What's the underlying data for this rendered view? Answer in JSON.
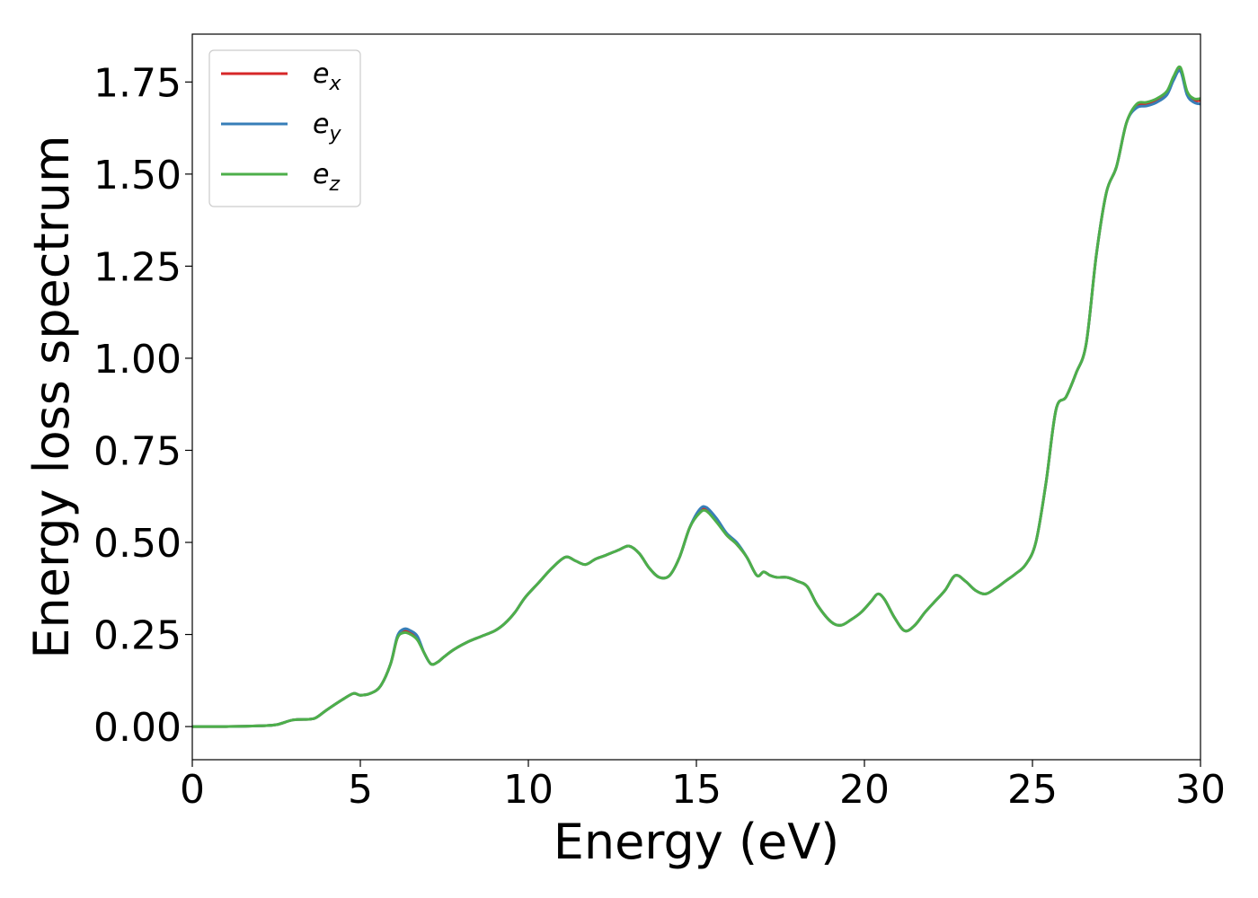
{
  "chart_data": {
    "type": "line",
    "title": "",
    "xlabel": "Energy (eV)",
    "ylabel": "Energy loss spectrum",
    "xlim": [
      0,
      30
    ],
    "ylim": [
      -0.09,
      1.88
    ],
    "xticks": [
      0,
      5,
      10,
      15,
      20,
      25,
      30
    ],
    "xtick_labels": [
      "0",
      "5",
      "10",
      "15",
      "20",
      "25",
      "30"
    ],
    "yticks": [
      0,
      0.25,
      0.5,
      0.75,
      1.0,
      1.25,
      1.5,
      1.75
    ],
    "ytick_labels": [
      "0.00",
      "0.25",
      "0.50",
      "0.75",
      "1.00",
      "1.25",
      "1.50",
      "1.75"
    ],
    "grid": false,
    "legend_position": "top-left",
    "x": [
      0,
      1,
      2,
      2.5,
      3,
      3.5,
      3.7,
      4,
      4.5,
      4.8,
      5,
      5.3,
      5.6,
      5.9,
      6.1,
      6.3,
      6.5,
      6.7,
      6.9,
      7.1,
      7.3,
      7.5,
      7.8,
      8.2,
      8.6,
      9,
      9.3,
      9.6,
      9.9,
      10.3,
      10.7,
      11.1,
      11.4,
      11.7,
      12,
      12.3,
      12.7,
      13,
      13.3,
      13.6,
      13.9,
      14.2,
      14.5,
      14.8,
      15.1,
      15.3,
      15.6,
      15.9,
      16.2,
      16.5,
      16.8,
      17,
      17.2,
      17.4,
      17.7,
      18,
      18.3,
      18.6,
      19,
      19.3,
      19.6,
      19.9,
      20.2,
      20.4,
      20.6,
      20.9,
      21.2,
      21.5,
      21.8,
      22.1,
      22.4,
      22.7,
      23,
      23.3,
      23.6,
      23.9,
      24.2,
      24.5,
      24.8,
      25.1,
      25.4,
      25.7,
      26,
      26.3,
      26.6,
      26.9,
      27.2,
      27.5,
      27.8,
      28.1,
      28.4,
      28.7,
      29,
      29.2,
      29.4,
      29.6,
      29.8,
      30
    ],
    "series": [
      {
        "name": "e_x",
        "label_base": "e",
        "label_sub": "x",
        "color": "#d62728",
        "y": [
          0.0,
          0.0,
          0.002,
          0.005,
          0.018,
          0.02,
          0.025,
          0.045,
          0.075,
          0.09,
          0.085,
          0.09,
          0.11,
          0.17,
          0.24,
          0.26,
          0.255,
          0.24,
          0.2,
          0.17,
          0.175,
          0.19,
          0.21,
          0.23,
          0.245,
          0.26,
          0.28,
          0.31,
          0.35,
          0.39,
          0.43,
          0.46,
          0.45,
          0.44,
          0.455,
          0.465,
          0.48,
          0.49,
          0.47,
          0.43,
          0.405,
          0.41,
          0.46,
          0.54,
          0.585,
          0.59,
          0.56,
          0.52,
          0.495,
          0.46,
          0.41,
          0.42,
          0.41,
          0.405,
          0.405,
          0.395,
          0.38,
          0.33,
          0.285,
          0.275,
          0.29,
          0.31,
          0.34,
          0.36,
          0.345,
          0.295,
          0.26,
          0.275,
          0.31,
          0.34,
          0.37,
          0.41,
          0.395,
          0.37,
          0.36,
          0.375,
          0.395,
          0.415,
          0.44,
          0.5,
          0.66,
          0.86,
          0.895,
          0.96,
          1.04,
          1.28,
          1.45,
          1.52,
          1.64,
          1.685,
          1.69,
          1.7,
          1.72,
          1.76,
          1.785,
          1.72,
          1.7,
          1.7
        ]
      },
      {
        "name": "e_y",
        "label_base": "e",
        "label_sub": "y",
        "color": "#377eb8",
        "y": [
          0.0,
          0.0,
          0.002,
          0.005,
          0.018,
          0.02,
          0.025,
          0.045,
          0.075,
          0.09,
          0.085,
          0.09,
          0.11,
          0.17,
          0.245,
          0.265,
          0.26,
          0.245,
          0.2,
          0.17,
          0.175,
          0.19,
          0.21,
          0.23,
          0.245,
          0.26,
          0.28,
          0.31,
          0.35,
          0.39,
          0.43,
          0.46,
          0.45,
          0.44,
          0.455,
          0.465,
          0.48,
          0.49,
          0.47,
          0.43,
          0.405,
          0.41,
          0.46,
          0.54,
          0.59,
          0.595,
          0.565,
          0.525,
          0.5,
          0.46,
          0.41,
          0.42,
          0.41,
          0.405,
          0.405,
          0.395,
          0.38,
          0.33,
          0.285,
          0.275,
          0.29,
          0.31,
          0.34,
          0.36,
          0.345,
          0.295,
          0.26,
          0.275,
          0.31,
          0.34,
          0.37,
          0.41,
          0.395,
          0.37,
          0.36,
          0.375,
          0.395,
          0.415,
          0.44,
          0.5,
          0.66,
          0.86,
          0.895,
          0.96,
          1.04,
          1.28,
          1.45,
          1.52,
          1.64,
          1.68,
          1.685,
          1.695,
          1.715,
          1.755,
          1.78,
          1.715,
          1.695,
          1.69
        ]
      },
      {
        "name": "e_z",
        "label_base": "e",
        "label_sub": "z",
        "color": "#4daf4a",
        "y": [
          0.0,
          0.0,
          0.002,
          0.005,
          0.018,
          0.02,
          0.025,
          0.045,
          0.075,
          0.09,
          0.085,
          0.09,
          0.11,
          0.17,
          0.24,
          0.255,
          0.25,
          0.235,
          0.2,
          0.17,
          0.175,
          0.19,
          0.21,
          0.23,
          0.245,
          0.26,
          0.28,
          0.31,
          0.35,
          0.39,
          0.43,
          0.46,
          0.45,
          0.44,
          0.455,
          0.465,
          0.48,
          0.49,
          0.47,
          0.43,
          0.405,
          0.41,
          0.46,
          0.54,
          0.58,
          0.585,
          0.555,
          0.52,
          0.495,
          0.46,
          0.41,
          0.42,
          0.41,
          0.405,
          0.405,
          0.395,
          0.38,
          0.33,
          0.285,
          0.275,
          0.29,
          0.31,
          0.34,
          0.36,
          0.345,
          0.295,
          0.26,
          0.275,
          0.31,
          0.34,
          0.37,
          0.41,
          0.395,
          0.37,
          0.36,
          0.375,
          0.395,
          0.415,
          0.44,
          0.5,
          0.66,
          0.86,
          0.895,
          0.96,
          1.04,
          1.28,
          1.45,
          1.52,
          1.64,
          1.69,
          1.695,
          1.705,
          1.725,
          1.765,
          1.79,
          1.725,
          1.705,
          1.705
        ]
      }
    ]
  }
}
